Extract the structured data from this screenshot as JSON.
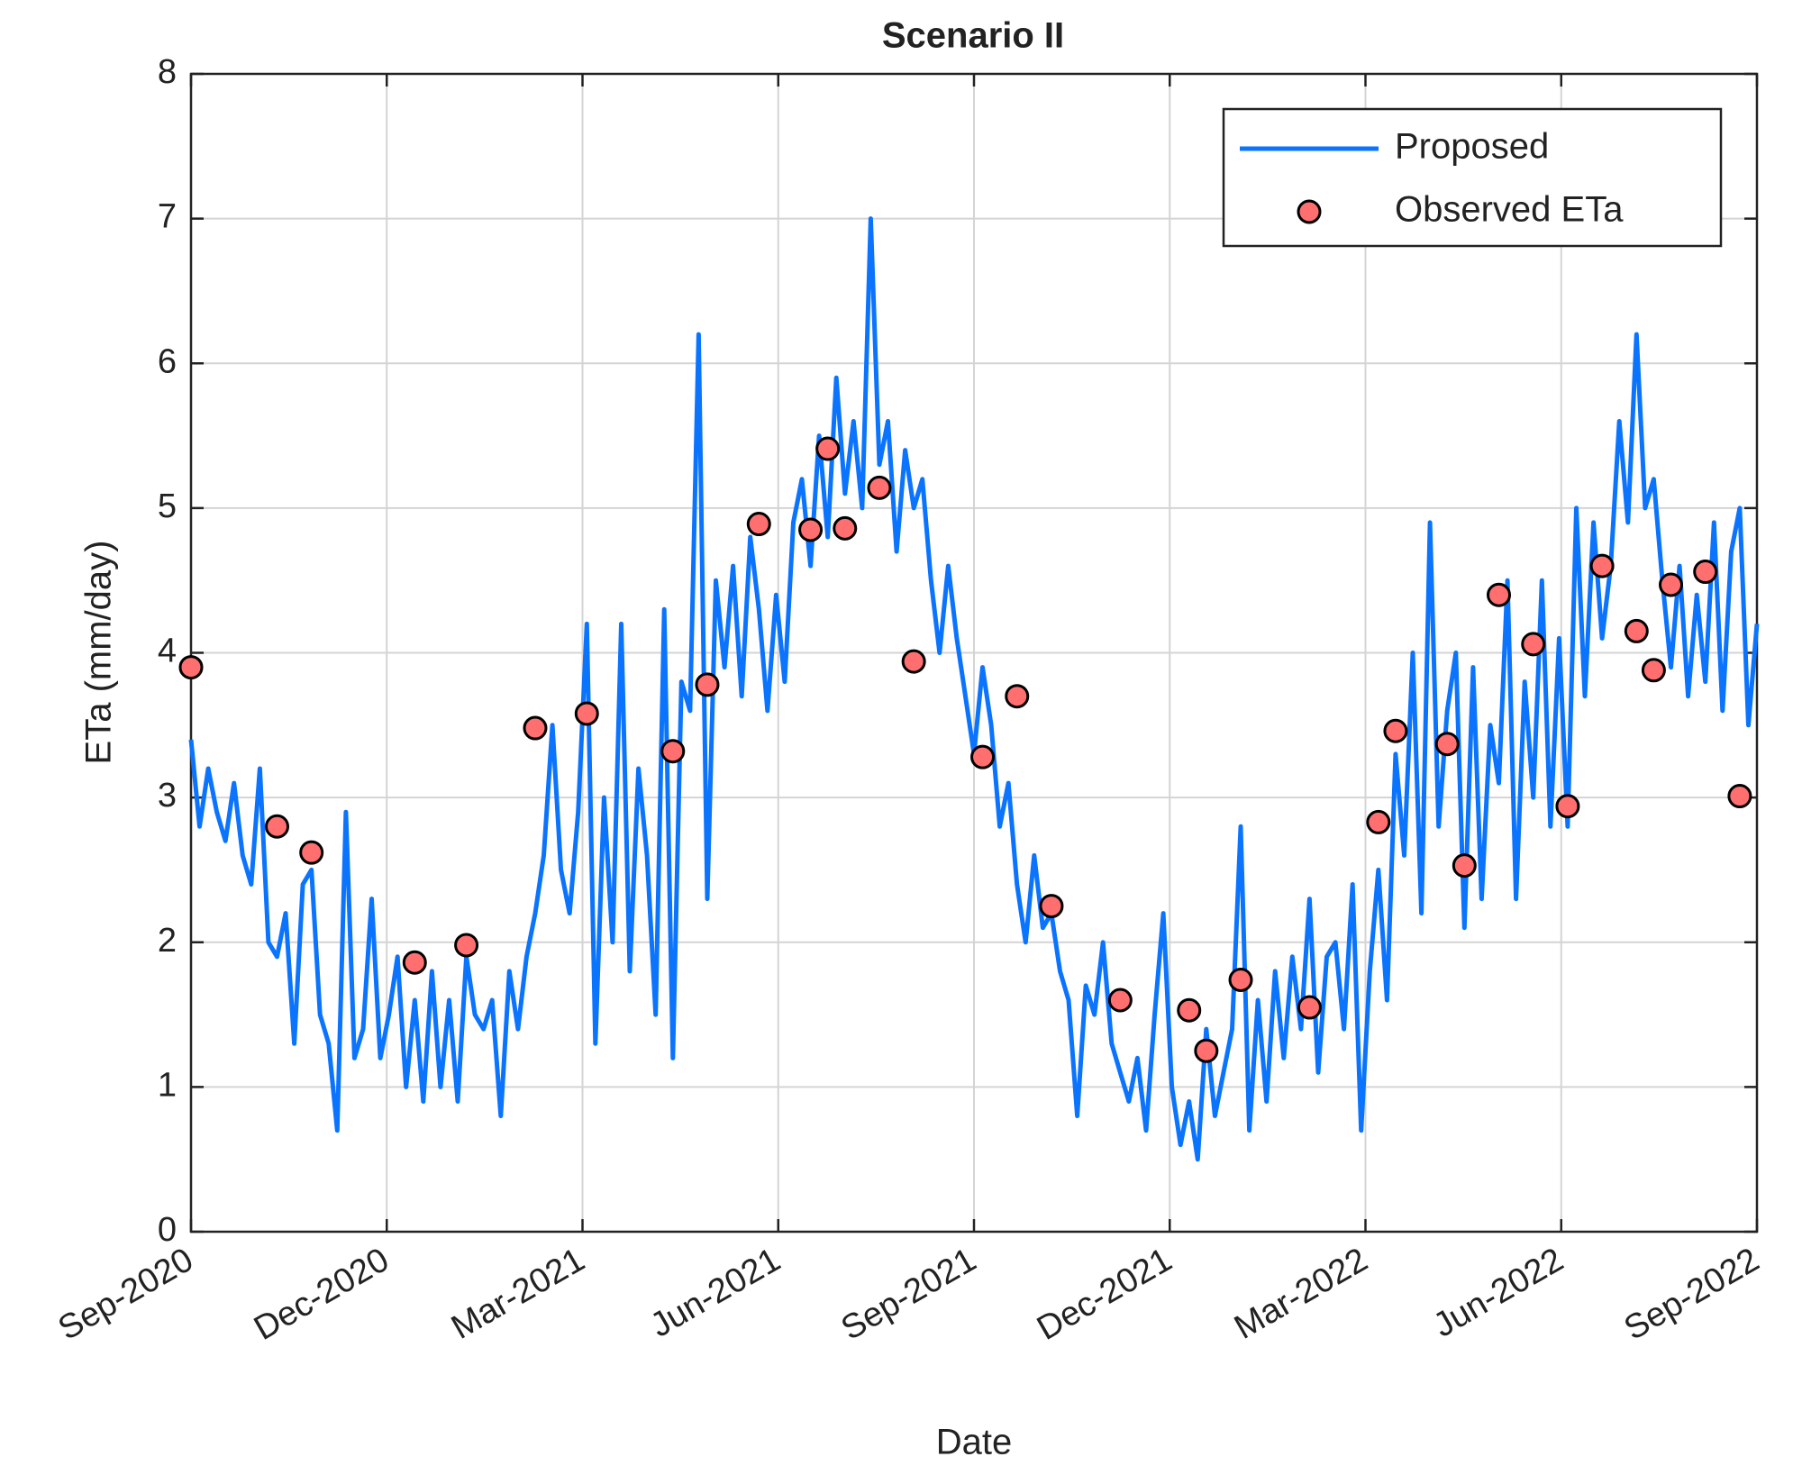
{
  "chart_data": {
    "type": "line",
    "title": "Scenario II",
    "xlabel": "Date",
    "ylabel": "ETa (mm/day)",
    "xlim": [
      "Sep-2020",
      "Sep-2022"
    ],
    "xticks": [
      "Sep-2020",
      "Dec-2020",
      "Mar-2021",
      "Jun-2021",
      "Sep-2021",
      "Dec-2021",
      "Mar-2022",
      "Jun-2022",
      "Sep-2022"
    ],
    "ylim": [
      0,
      8
    ],
    "yticks": [
      0,
      1,
      2,
      3,
      4,
      5,
      6,
      7,
      8
    ],
    "grid": true,
    "legend": "northeast",
    "series": [
      {
        "name": "Proposed",
        "color": "#0a74ff",
        "style": "line",
        "values": [
          3.4,
          2.8,
          3.2,
          2.9,
          2.7,
          3.1,
          2.6,
          2.4,
          3.2,
          2.0,
          1.9,
          2.2,
          1.3,
          2.4,
          2.5,
          1.5,
          1.3,
          0.7,
          2.9,
          1.2,
          1.4,
          2.3,
          1.2,
          1.5,
          1.9,
          1.0,
          1.6,
          0.9,
          1.8,
          1.0,
          1.6,
          0.9,
          1.9,
          1.5,
          1.4,
          1.6,
          0.8,
          1.8,
          1.4,
          1.9,
          2.2,
          2.6,
          3.5,
          2.5,
          2.2,
          2.9,
          4.2,
          1.3,
          3.0,
          2.0,
          4.2,
          1.8,
          3.2,
          2.6,
          1.5,
          4.3,
          1.2,
          3.8,
          3.6,
          6.2,
          2.3,
          4.5,
          3.9,
          4.6,
          3.7,
          4.8,
          4.3,
          3.6,
          4.4,
          3.8,
          4.9,
          5.2,
          4.6,
          5.5,
          4.8,
          5.9,
          5.1,
          5.6,
          5.0,
          7.0,
          5.3,
          5.6,
          4.7,
          5.4,
          5.0,
          5.2,
          4.5,
          4.0,
          4.6,
          4.1,
          3.7,
          3.3,
          3.9,
          3.5,
          2.8,
          3.1,
          2.4,
          2.0,
          2.6,
          2.1,
          2.2,
          1.8,
          1.6,
          0.8,
          1.7,
          1.5,
          2.0,
          1.3,
          1.1,
          0.9,
          1.2,
          0.7,
          1.5,
          2.2,
          1.0,
          0.6,
          0.9,
          0.5,
          1.4,
          0.8,
          1.1,
          1.4,
          2.8,
          0.7,
          1.6,
          0.9,
          1.8,
          1.2,
          1.9,
          1.4,
          2.3,
          1.1,
          1.9,
          2.0,
          1.4,
          2.4,
          0.7,
          1.8,
          2.5,
          1.6,
          3.3,
          2.6,
          4.0,
          2.2,
          4.9,
          2.8,
          3.6,
          4.0,
          2.1,
          3.9,
          2.3,
          3.5,
          3.1,
          4.5,
          2.3,
          3.8,
          3.0,
          4.5,
          2.8,
          4.1,
          2.8,
          5.0,
          3.7,
          4.9,
          4.1,
          4.6,
          5.6,
          4.9,
          6.2,
          5.0,
          5.2,
          4.5,
          3.9,
          4.6,
          3.7,
          4.4,
          3.8,
          4.9,
          3.6,
          4.7,
          5.0,
          3.5,
          4.2
        ]
      },
      {
        "name": "Observed ETa",
        "color": "#ff6f6f",
        "style": "marker",
        "values": [
          3.9,
          null,
          null,
          null,
          null,
          2.8,
          null,
          2.62,
          null,
          null,
          null,
          null,
          null,
          1.86,
          null,
          null,
          1.98,
          null,
          null,
          null,
          3.48,
          null,
          null,
          3.58,
          null,
          null,
          null,
          null,
          3.32,
          null,
          3.78,
          null,
          null,
          4.89,
          null,
          null,
          4.85,
          5.41,
          4.86,
          null,
          5.14,
          null,
          3.94,
          null,
          null,
          null,
          3.28,
          null,
          3.7,
          null,
          2.25,
          null,
          null,
          null,
          1.6,
          null,
          null,
          null,
          1.53,
          1.25,
          null,
          1.74,
          null,
          null,
          null,
          1.55,
          null,
          null,
          null,
          2.83,
          3.46,
          null,
          null,
          3.37,
          2.53,
          null,
          4.4,
          null,
          4.06,
          null,
          2.94,
          null,
          4.6,
          null,
          4.15,
          3.88,
          4.47,
          null,
          4.56,
          null,
          3.01,
          null
        ]
      }
    ]
  }
}
